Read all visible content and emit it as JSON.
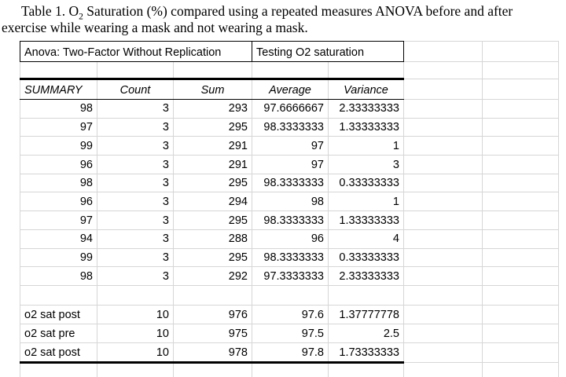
{
  "caption": {
    "line1_pre": "Table 1. O",
    "line1_sub": "2",
    "line1_rest": " Saturation (%) compared using a repeated measures ANOVA before and after",
    "line2": "exercise while wearing a mask and not wearing a mask."
  },
  "spreadsheet": {
    "anova_title": "Anova: Two-Factor Without Replication",
    "testing_title": "Testing O2 saturation",
    "headers": [
      "SUMMARY",
      "Count",
      "Sum",
      "Average",
      "Variance"
    ],
    "summary_rows": [
      [
        "98",
        "3",
        "293",
        "97.6666667",
        "2.33333333"
      ],
      [
        "97",
        "3",
        "295",
        "98.3333333",
        "1.33333333"
      ],
      [
        "99",
        "3",
        "291",
        "97",
        "1"
      ],
      [
        "96",
        "3",
        "291",
        "97",
        "3"
      ],
      [
        "98",
        "3",
        "295",
        "98.3333333",
        "0.33333333"
      ],
      [
        "96",
        "3",
        "294",
        "98",
        "1"
      ],
      [
        "97",
        "3",
        "295",
        "98.3333333",
        "1.33333333"
      ],
      [
        "94",
        "3",
        "288",
        "96",
        "4"
      ],
      [
        "99",
        "3",
        "295",
        "98.3333333",
        "0.33333333"
      ],
      [
        "98",
        "3",
        "292",
        "97.3333333",
        "2.33333333"
      ]
    ],
    "totals_rows": [
      [
        "o2 sat post",
        "10",
        "976",
        "97.6",
        "1.37777778"
      ],
      [
        "o2 sat pre",
        "10",
        "975",
        "97.5",
        "2.5"
      ],
      [
        "o2 sat post",
        "10",
        "978",
        "97.8",
        "1.73333333"
      ]
    ],
    "colors": {
      "gridline": "#d6d6d6",
      "border": "#000000",
      "text": "#000000",
      "background": "#ffffff"
    }
  }
}
